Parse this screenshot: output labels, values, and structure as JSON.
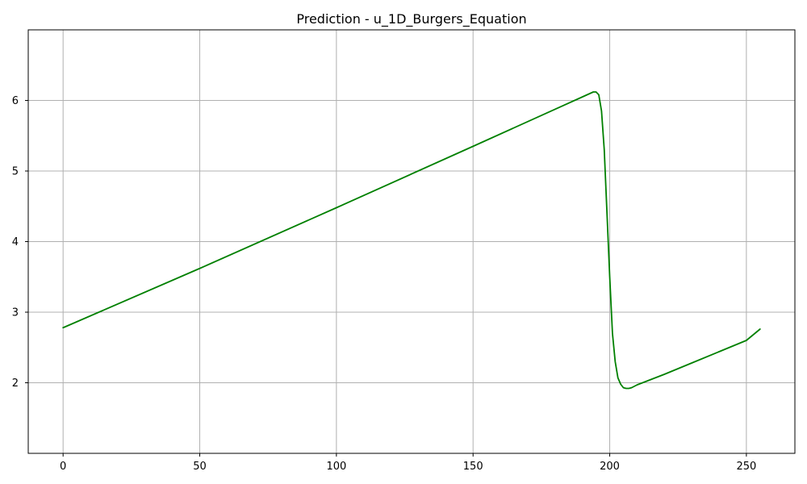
{
  "chart_data": {
    "type": "line",
    "title": "Prediction - u_1D_Burgers_Equation",
    "xlabel": "",
    "ylabel": "",
    "xlim": [
      -12.75,
      267.75
    ],
    "ylim": [
      1.0,
      7.0
    ],
    "xticks": [
      0,
      50,
      100,
      150,
      200,
      250
    ],
    "yticks": [
      2,
      3,
      4,
      5,
      6
    ],
    "xtick_labels": [
      "0",
      "50",
      "100",
      "150",
      "200",
      "250"
    ],
    "ytick_labels": [
      "2",
      "3",
      "4",
      "5",
      "6"
    ],
    "grid": true,
    "series": [
      {
        "color": "#008000",
        "x": [
          0,
          50,
          100,
          150,
          190,
          194,
          195,
          196,
          197,
          198,
          199,
          200,
          201,
          202,
          203,
          204,
          205,
          206,
          207,
          208,
          210,
          220,
          230,
          240,
          250,
          255
        ],
        "y": [
          2.78,
          3.62,
          4.48,
          5.35,
          6.05,
          6.12,
          6.12,
          6.08,
          5.85,
          5.3,
          4.4,
          3.5,
          2.7,
          2.3,
          2.07,
          1.98,
          1.93,
          1.92,
          1.92,
          1.93,
          1.97,
          2.12,
          2.28,
          2.44,
          2.6,
          2.76
        ]
      }
    ]
  }
}
